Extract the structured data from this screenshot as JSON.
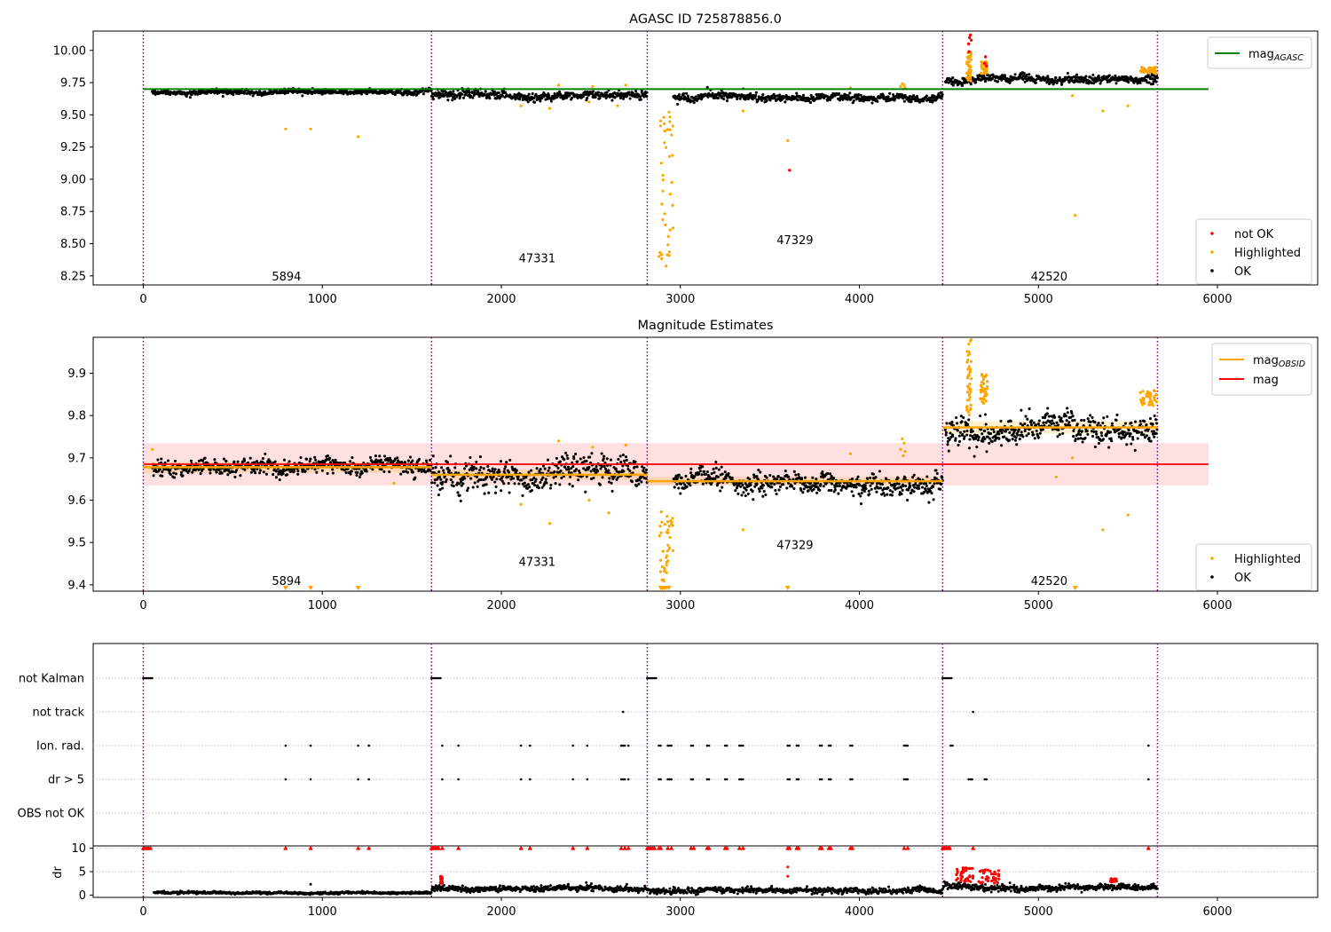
{
  "figure": {
    "background": "#ffffff",
    "colors": {
      "ok": "#000000",
      "highlighted": "#ffa500",
      "not_ok": "#ff0000",
      "mag_agasc": "#008000",
      "mag": "#ff0000",
      "mag_obsid": "#ffa500",
      "obs_boundary": "#800080",
      "grid": "#b0b0b0"
    }
  },
  "chart_data": [
    {
      "type": "scatter",
      "title": "AGASC ID 725878856.0",
      "xlim": [
        -280,
        6560
      ],
      "ylim": [
        8.18,
        10.15
      ],
      "xticks": [
        0,
        1000,
        2000,
        3000,
        4000,
        5000,
        6000
      ],
      "xtick_labels": [
        "0",
        "1000",
        "2000",
        "3000",
        "4000",
        "5000",
        "6000"
      ],
      "yticks": [
        8.25,
        8.5,
        8.75,
        9.0,
        9.25,
        9.5,
        9.75,
        10.0
      ],
      "ytick_labels": [
        "8.25",
        "8.50",
        "8.75",
        "9.00",
        "9.25",
        "9.50",
        "9.75",
        "10.00"
      ],
      "obs_boundaries": [
        0,
        1610,
        2815,
        4465,
        5665
      ],
      "obsid_labels": [
        {
          "text": "5894",
          "x": 800,
          "y": 8.25
        },
        {
          "text": "47331",
          "x": 2200,
          "y": 8.39
        },
        {
          "text": "47329",
          "x": 3640,
          "y": 8.53
        },
        {
          "text": "42520",
          "x": 5060,
          "y": 8.25
        }
      ],
      "mag_agasc": {
        "value": 9.7,
        "x": [
          0,
          5950
        ]
      },
      "legend_upper": {
        "position": "top-right",
        "entries": [
          {
            "label": "mag",
            "sub": "AGASC",
            "kind": "line",
            "color_key": "mag_agasc"
          }
        ]
      },
      "legend_lower": {
        "position": "lower-right",
        "entries": [
          {
            "label": "not OK",
            "kind": "dot",
            "color_key": "not_ok"
          },
          {
            "label": "Highlighted",
            "kind": "dot",
            "color_key": "highlighted"
          },
          {
            "label": "OK",
            "kind": "dot",
            "color_key": "ok"
          }
        ]
      },
      "ok_segments": [
        {
          "x0": 50,
          "x1": 1610,
          "mean": 9.678,
          "sd": 0.012
        },
        {
          "x0": 1610,
          "x1": 2815,
          "mean": 9.655,
          "sd": 0.022
        },
        {
          "x0": 2960,
          "x1": 4465,
          "mean": 9.635,
          "sd": 0.018
        },
        {
          "x0": 4480,
          "x1": 5665,
          "mean": 9.77,
          "sd": 0.02
        }
      ],
      "highlighted_points": [
        {
          "x": 795,
          "y": 9.39
        },
        {
          "x": 935,
          "y": 9.39
        },
        {
          "x": 1200,
          "y": 9.33
        },
        {
          "x": 2110,
          "y": 9.57
        },
        {
          "x": 2270,
          "y": 9.55
        },
        {
          "x": 2320,
          "y": 9.73
        },
        {
          "x": 2490,
          "y": 9.6
        },
        {
          "x": 2510,
          "y": 9.72
        },
        {
          "x": 2650,
          "y": 9.57
        },
        {
          "x": 2695,
          "y": 9.73
        },
        {
          "x": 3350,
          "y": 9.53
        },
        {
          "x": 3600,
          "y": 9.3
        },
        {
          "x": 3950,
          "y": 9.71
        },
        {
          "x": 5190,
          "y": 9.65
        },
        {
          "x": 5205,
          "y": 8.72
        },
        {
          "x": 5360,
          "y": 9.53
        },
        {
          "x": 5500,
          "y": 9.57
        },
        {
          "x": 4230,
          "y": 9.72
        },
        {
          "x": 4240,
          "y": 9.74
        },
        {
          "x": 4250,
          "y": 9.73
        },
        {
          "x": 4245,
          "y": 9.7
        },
        {
          "x": 4255,
          "y": 9.71
        }
      ],
      "highlighted_events": [
        {
          "x0": 2880,
          "x1": 2960,
          "ymin": 8.32,
          "ymax": 9.57
        },
        {
          "x0": 4600,
          "x1": 4625,
          "ymin": 9.76,
          "ymax": 9.99
        },
        {
          "x0": 4675,
          "x1": 4715,
          "ymin": 9.82,
          "ymax": 9.92
        },
        {
          "x0": 5570,
          "x1": 5660,
          "ymin": 9.82,
          "ymax": 9.87
        }
      ],
      "not_ok_points": [
        {
          "x": 3610,
          "y": 9.07
        },
        {
          "x": 4615,
          "y": 10.1
        },
        {
          "x": 4620,
          "y": 10.12
        },
        {
          "x": 4625,
          "y": 10.08
        },
        {
          "x": 4610,
          "y": 10.05
        },
        {
          "x": 4612,
          "y": 9.99
        },
        {
          "x": 4700,
          "y": 9.9
        },
        {
          "x": 4705,
          "y": 9.95
        },
        {
          "x": 4710,
          "y": 9.88
        }
      ]
    },
    {
      "type": "scatter",
      "title": "Magnitude Estimates",
      "xlim": [
        -280,
        6560
      ],
      "ylim": [
        9.385,
        9.985
      ],
      "xticks": [
        0,
        1000,
        2000,
        3000,
        4000,
        5000,
        6000
      ],
      "xtick_labels": [
        "0",
        "1000",
        "2000",
        "3000",
        "4000",
        "5000",
        "6000"
      ],
      "yticks": [
        9.4,
        9.5,
        9.6,
        9.7,
        9.8,
        9.9
      ],
      "ytick_labels": [
        "9.4",
        "9.5",
        "9.6",
        "9.7",
        "9.8",
        "9.9"
      ],
      "obs_boundaries": [
        0,
        1610,
        2815,
        4465,
        5665
      ],
      "obsid_labels": [
        {
          "text": "5894",
          "x": 800,
          "y": 9.41
        },
        {
          "text": "47331",
          "x": 2200,
          "y": 9.455
        },
        {
          "text": "47329",
          "x": 3640,
          "y": 9.495
        },
        {
          "text": "42520",
          "x": 5060,
          "y": 9.41
        }
      ],
      "mag": {
        "value": 9.685,
        "band": [
          9.635,
          9.735
        ],
        "x": [
          0,
          5950
        ]
      },
      "mag_obsid": [
        {
          "x0": 0,
          "x1": 1610,
          "value": 9.678,
          "band": [
            9.665,
            9.691
          ]
        },
        {
          "x0": 1610,
          "x1": 2815,
          "value": 9.66,
          "band": [
            9.648,
            9.672
          ]
        },
        {
          "x0": 2815,
          "x1": 4465,
          "value": 9.645,
          "band": [
            9.635,
            9.655
          ]
        },
        {
          "x0": 4465,
          "x1": 5665,
          "value": 9.772,
          "band": [
            9.757,
            9.787
          ]
        }
      ],
      "legend_upper": {
        "position": "top-right",
        "entries": [
          {
            "label": "mag",
            "sub": "OBSID",
            "kind": "line",
            "color_key": "mag_obsid"
          },
          {
            "label": "mag",
            "sub": "",
            "kind": "line",
            "color_key": "mag"
          }
        ]
      },
      "legend_lower": {
        "position": "lower-right",
        "entries": [
          {
            "label": "Highlighted",
            "kind": "dot",
            "color_key": "highlighted"
          },
          {
            "label": "OK",
            "kind": "dot",
            "color_key": "ok"
          }
        ]
      },
      "ok_segments": [
        {
          "x0": 50,
          "x1": 1610,
          "mean": 9.678,
          "sd": 0.012
        },
        {
          "x0": 1610,
          "x1": 2815,
          "mean": 9.66,
          "sd": 0.022
        },
        {
          "x0": 2960,
          "x1": 4465,
          "mean": 9.643,
          "sd": 0.016
        },
        {
          "x0": 4480,
          "x1": 5665,
          "mean": 9.772,
          "sd": 0.022
        }
      ],
      "highlighted_points": [
        {
          "x": 50,
          "y": 9.72
        },
        {
          "x": 1400,
          "y": 9.64
        },
        {
          "x": 2110,
          "y": 9.59
        },
        {
          "x": 2270,
          "y": 9.545
        },
        {
          "x": 2320,
          "y": 9.74
        },
        {
          "x": 2490,
          "y": 9.6
        },
        {
          "x": 2510,
          "y": 9.725
        },
        {
          "x": 2600,
          "y": 9.57
        },
        {
          "x": 2695,
          "y": 9.73
        },
        {
          "x": 3350,
          "y": 9.53
        },
        {
          "x": 3950,
          "y": 9.71
        },
        {
          "x": 5100,
          "y": 9.655
        },
        {
          "x": 5190,
          "y": 9.7
        },
        {
          "x": 5360,
          "y": 9.53
        },
        {
          "x": 5500,
          "y": 9.565
        },
        {
          "x": 4230,
          "y": 9.72
        },
        {
          "x": 4240,
          "y": 9.745
        },
        {
          "x": 4250,
          "y": 9.735
        },
        {
          "x": 4245,
          "y": 9.705
        },
        {
          "x": 4255,
          "y": 9.715
        }
      ],
      "highlighted_events": [
        {
          "x0": 2880,
          "x1": 2960,
          "ymin": 9.395,
          "ymax": 9.58
        },
        {
          "x0": 4600,
          "x1": 4625,
          "ymin": 9.8,
          "ymax": 9.98
        },
        {
          "x0": 4675,
          "x1": 4715,
          "ymin": 9.82,
          "ymax": 9.9
        },
        {
          "x0": 5570,
          "x1": 5660,
          "ymin": 9.82,
          "ymax": 9.86
        }
      ],
      "floor_markers_x": [
        795,
        935,
        1200,
        2890,
        2900,
        2910,
        2920,
        2935,
        3600,
        5205
      ]
    },
    {
      "type": "scatter",
      "title": "",
      "xlim": [
        -280,
        6560
      ],
      "categories": [
        "not Kalman",
        "not track",
        "Ion. rad.",
        "dr > 5",
        "OBS not OK"
      ],
      "obs_boundaries": [
        0,
        1610,
        2815,
        4465,
        5665
      ],
      "flags": {
        "not Kalman": [
          {
            "x0": 0,
            "x1": 50
          },
          {
            "x0": 1610,
            "x1": 1660
          },
          {
            "x0": 2815,
            "x1": 2865
          },
          {
            "x0": 4465,
            "x1": 4515
          }
        ],
        "not track": [
          {
            "x0": 2680,
            "x1": 2680
          },
          {
            "x0": 4635,
            "x1": 4635
          }
        ],
        "Ion. rad.": [
          {
            "x0": 795,
            "x1": 795
          },
          {
            "x0": 935,
            "x1": 935
          },
          {
            "x0": 1200,
            "x1": 1200
          },
          {
            "x0": 1260,
            "x1": 1260
          },
          {
            "x0": 1670,
            "x1": 1670
          },
          {
            "x0": 1760,
            "x1": 1760
          },
          {
            "x0": 2110,
            "x1": 2110
          },
          {
            "x0": 2160,
            "x1": 2160
          },
          {
            "x0": 2400,
            "x1": 2400
          },
          {
            "x0": 2480,
            "x1": 2480
          },
          {
            "x0": 2670,
            "x1": 2690
          },
          {
            "x0": 2710,
            "x1": 2710
          },
          {
            "x0": 2880,
            "x1": 2890
          },
          {
            "x0": 2930,
            "x1": 2950
          },
          {
            "x0": 3060,
            "x1": 3075
          },
          {
            "x0": 3150,
            "x1": 3160
          },
          {
            "x0": 3250,
            "x1": 3260
          },
          {
            "x0": 3330,
            "x1": 3350
          },
          {
            "x0": 3600,
            "x1": 3610
          },
          {
            "x0": 3650,
            "x1": 3660
          },
          {
            "x0": 3780,
            "x1": 3790
          },
          {
            "x0": 3830,
            "x1": 3840
          },
          {
            "x0": 3950,
            "x1": 3960
          },
          {
            "x0": 4250,
            "x1": 4270
          },
          {
            "x0": 4510,
            "x1": 4520
          },
          {
            "x0": 5615,
            "x1": 5615
          }
        ],
        "dr > 5": [
          {
            "x0": 795,
            "x1": 795
          },
          {
            "x0": 935,
            "x1": 935
          },
          {
            "x0": 1200,
            "x1": 1200
          },
          {
            "x0": 1260,
            "x1": 1260
          },
          {
            "x0": 1670,
            "x1": 1670
          },
          {
            "x0": 1760,
            "x1": 1760
          },
          {
            "x0": 2110,
            "x1": 2110
          },
          {
            "x0": 2160,
            "x1": 2160
          },
          {
            "x0": 2400,
            "x1": 2400
          },
          {
            "x0": 2480,
            "x1": 2480
          },
          {
            "x0": 2670,
            "x1": 2690
          },
          {
            "x0": 2710,
            "x1": 2710
          },
          {
            "x0": 2880,
            "x1": 2890
          },
          {
            "x0": 2930,
            "x1": 2950
          },
          {
            "x0": 3060,
            "x1": 3075
          },
          {
            "x0": 3150,
            "x1": 3160
          },
          {
            "x0": 3250,
            "x1": 3260
          },
          {
            "x0": 3330,
            "x1": 3350
          },
          {
            "x0": 3600,
            "x1": 3610
          },
          {
            "x0": 3650,
            "x1": 3660
          },
          {
            "x0": 3780,
            "x1": 3790
          },
          {
            "x0": 3830,
            "x1": 3840
          },
          {
            "x0": 3950,
            "x1": 3960
          },
          {
            "x0": 4250,
            "x1": 4270
          },
          {
            "x0": 4610,
            "x1": 4630
          },
          {
            "x0": 4700,
            "x1": 4715
          },
          {
            "x0": 5615,
            "x1": 5615
          }
        ],
        "OBS not OK": []
      }
    },
    {
      "type": "scatter",
      "title": "",
      "ylabel": "dr",
      "xlim": [
        -280,
        6560
      ],
      "ylim": [
        -0.5,
        10.5
      ],
      "xticks": [
        0,
        1000,
        2000,
        3000,
        4000,
        5000,
        6000
      ],
      "xtick_labels": [
        "0",
        "1000",
        "2000",
        "3000",
        "4000",
        "5000",
        "6000"
      ],
      "yticks": [
        0,
        5,
        10
      ],
      "ytick_labels": [
        "0",
        "5",
        "10"
      ],
      "obs_boundaries": [
        0,
        1610,
        2815,
        4465,
        5665
      ],
      "ok_segments": [
        {
          "x0": 60,
          "x1": 1610,
          "mean": 0.5,
          "sd": 0.15
        },
        {
          "x0": 1610,
          "x1": 2815,
          "mean": 1.5,
          "sd": 0.4
        },
        {
          "x0": 2815,
          "x1": 4465,
          "mean": 1.1,
          "sd": 0.4
        },
        {
          "x0": 4465,
          "x1": 5665,
          "mean": 1.7,
          "sd": 0.45
        }
      ],
      "cap_markers_x": [
        0,
        10,
        20,
        30,
        40,
        795,
        935,
        1200,
        1260,
        1610,
        1620,
        1630,
        1640,
        1650,
        1670,
        1760,
        2110,
        2160,
        2400,
        2480,
        2670,
        2690,
        2710,
        2815,
        2825,
        2835,
        2845,
        2855,
        2880,
        2890,
        2930,
        2950,
        3060,
        3075,
        3150,
        3160,
        3250,
        3260,
        3330,
        3350,
        3600,
        3610,
        3650,
        3660,
        3780,
        3790,
        3830,
        3840,
        3950,
        3960,
        4250,
        4270,
        4465,
        4475,
        4485,
        4495,
        4505,
        4635,
        5615
      ],
      "not_ok_events": [
        {
          "x0": 1660,
          "x1": 1670,
          "ymin": 2.5,
          "ymax": 4.0
        },
        {
          "x0": 4540,
          "x1": 4640,
          "ymin": 2.8,
          "ymax": 6.0
        },
        {
          "x0": 4660,
          "x1": 4780,
          "ymin": 2.5,
          "ymax": 5.5
        },
        {
          "x0": 5400,
          "x1": 5440,
          "ymin": 2.8,
          "ymax": 3.5
        }
      ],
      "extra_points": [
        {
          "x": 935,
          "y": 2.3,
          "color_key": "ok"
        },
        {
          "x": 3600,
          "y": 6.0,
          "color_key": "not_ok"
        },
        {
          "x": 3600,
          "y": 4.0,
          "color_key": "not_ok"
        }
      ]
    }
  ]
}
